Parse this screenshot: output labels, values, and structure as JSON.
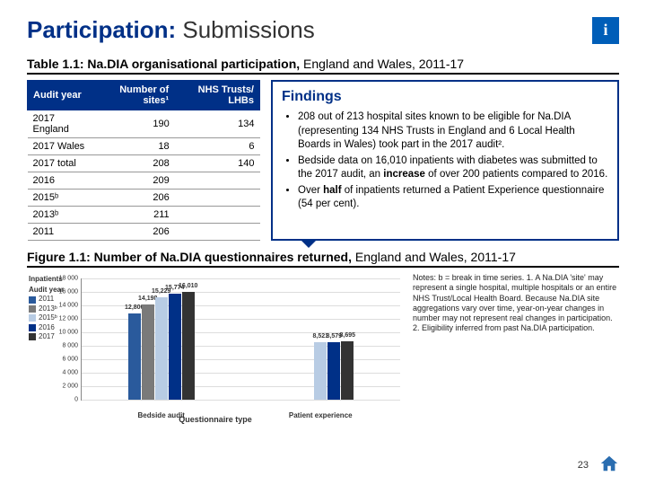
{
  "title": {
    "bold": "Participation:",
    "light": "Submissions"
  },
  "info_icon": "i",
  "table_caption": {
    "bold": "Table 1.1: Na.DIA organisational participation,",
    "rest": " England and Wales, 2011-17"
  },
  "table": {
    "headers": [
      "Audit year",
      "Number of sites¹",
      "NHS Trusts/ LHBs"
    ],
    "rows": [
      [
        "2017 England",
        "190",
        "134"
      ],
      [
        "2017 Wales",
        "18",
        "6"
      ],
      [
        "2017 total",
        "208",
        "140"
      ],
      [
        "2016",
        "209",
        ""
      ],
      [
        "2015ᵇ",
        "206",
        ""
      ],
      [
        "2013ᵇ",
        "211",
        ""
      ],
      [
        "2011",
        "206",
        ""
      ]
    ]
  },
  "findings": {
    "title": "Findings",
    "items": [
      "208 out of 213 hospital sites known to be eligible for Na.DIA (representing 134 NHS Trusts in England and 6 Local Health Boards in Wales) took part in the 2017 audit².",
      "Bedside data on 16,010 inpatients with diabetes was submitted to the 2017 audit, an <b>increase</b> of over 200 patients compared to 2016.",
      "Over <b>half</b> of inpatients returned a Patient Experience questionnaire (54 per cent)."
    ]
  },
  "figure_caption": {
    "bold": "Figure 1.1: Number of Na.DIA questionnaires returned,",
    "rest": " England and Wales, 2011-17"
  },
  "chart": {
    "ylabel": "Inpatients",
    "xlabel": "Questionnaire type",
    "ymax": 18000,
    "ytick_step": 2000,
    "categories": [
      "Bedside audit",
      "Patient experience"
    ],
    "series": [
      {
        "name": "2011",
        "color": "#2a5a9c",
        "values": [
          12806,
          0
        ]
      },
      {
        "name": "2013ᵇ",
        "color": "#7a7a7a",
        "values": [
          14198,
          0
        ]
      },
      {
        "name": "2015ᵇ",
        "color": "#b8cce4",
        "values": [
          15229,
          8521
        ]
      },
      {
        "name": "2016",
        "color": "#003087",
        "values": [
          15774,
          8579
        ]
      },
      {
        "name": "2017",
        "color": "#333333",
        "values": [
          16010,
          8695
        ]
      }
    ],
    "value_labels": [
      [
        "12,806",
        "14,198",
        "15,229",
        "15,774",
        "16,010"
      ],
      [
        "",
        "",
        "8,521",
        "8,579",
        "8,695"
      ]
    ],
    "legend_title": "Audit year"
  },
  "notes": "Notes: b = break in time series.\n1. A Na.DIA 'site' may represent a single hospital, multiple hospitals or an entire NHS Trust/Local Health Board. Because Na.DIA site aggregations vary over time, year-on-year changes in number may not represent real changes in participation.\n2. Eligibility inferred from past Na.DIA participation.",
  "page_number": "23"
}
